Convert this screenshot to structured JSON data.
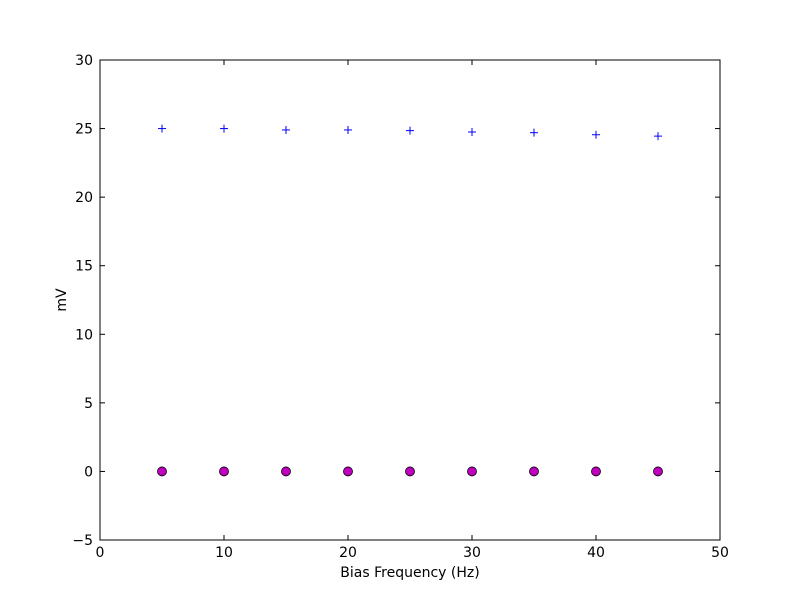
{
  "chart_data": {
    "type": "scatter",
    "title": "",
    "xlabel": "Bias Frequency (Hz)",
    "ylabel": "mV",
    "xlim": [
      0,
      50
    ],
    "ylim": [
      -5,
      30
    ],
    "xticks": [
      0,
      10,
      20,
      30,
      40,
      50
    ],
    "yticks": [
      -5,
      0,
      5,
      10,
      15,
      20,
      25,
      30
    ],
    "xtick_labels": [
      "0",
      "10",
      "20",
      "30",
      "40",
      "50"
    ],
    "ytick_labels": [
      "−5",
      "0",
      "5",
      "10",
      "15",
      "20",
      "25",
      "30"
    ],
    "grid": false,
    "legend": "none",
    "series": [
      {
        "marker": "plus",
        "color": "#0000ff",
        "x": [
          5,
          10,
          15,
          20,
          25,
          30,
          35,
          40,
          45
        ],
        "y": [
          25.0,
          25.0,
          24.9,
          24.9,
          24.85,
          24.75,
          24.7,
          24.55,
          24.45
        ]
      },
      {
        "marker": "circle",
        "color": "#bf00bf",
        "x": [
          5,
          10,
          15,
          20,
          25,
          30,
          35,
          40,
          45
        ],
        "y": [
          0,
          0,
          0,
          0,
          0,
          0,
          0,
          0,
          0
        ]
      }
    ]
  }
}
